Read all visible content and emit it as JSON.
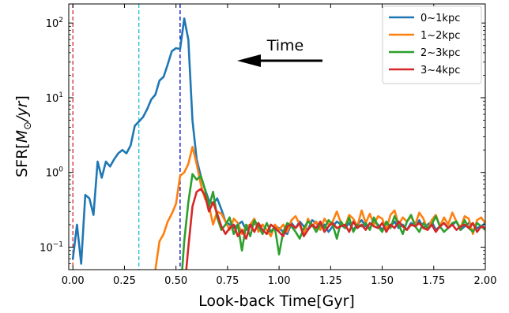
{
  "chart_data": {
    "type": "line",
    "xlabel": "Look-back Time[Gyr]",
    "ylabel_parts": [
      "SFR[",
      "M",
      "⊙",
      "/",
      "yr",
      "]"
    ],
    "xlim": [
      -0.02,
      2.0
    ],
    "ylim": [
      0.05,
      180
    ],
    "yscale": "log",
    "xticks": [
      0.0,
      0.25,
      0.5,
      0.75,
      1.0,
      1.25,
      1.5,
      1.75,
      2.0
    ],
    "xtick_labels": [
      "0.00",
      "0.25",
      "0.50",
      "0.75",
      "1.00",
      "1.25",
      "1.50",
      "1.75",
      "2.00"
    ],
    "yticks": [
      {
        "value": 0.1,
        "base": "10",
        "exp": "−1"
      },
      {
        "value": 1,
        "base": "10",
        "exp": "0"
      },
      {
        "value": 10,
        "base": "10",
        "exp": "1"
      },
      {
        "value": 100,
        "base": "10",
        "exp": "2"
      }
    ],
    "grid": false,
    "legend_position": "top-right",
    "vlines": [
      {
        "x": 0.0,
        "color": "#d62728",
        "style": "dashed"
      },
      {
        "x": 0.32,
        "color": "#17becf",
        "style": "dashed"
      },
      {
        "x": 0.52,
        "color": "#0000cc",
        "style": "dashed"
      }
    ],
    "annotation": {
      "text": "Time",
      "arrow": "left",
      "x_from": 1.21,
      "x_to": 0.82,
      "y": 60
    },
    "series": [
      {
        "name": "0~1kpc",
        "color": "#1f77b4",
        "x": [
          0.0,
          0.02,
          0.04,
          0.06,
          0.08,
          0.1,
          0.12,
          0.14,
          0.16,
          0.18,
          0.2,
          0.22,
          0.24,
          0.26,
          0.28,
          0.3,
          0.32,
          0.34,
          0.36,
          0.38,
          0.4,
          0.42,
          0.44,
          0.46,
          0.48,
          0.5,
          0.52,
          0.54,
          0.56,
          0.58,
          0.6,
          0.62,
          0.64,
          0.66,
          0.68,
          0.7,
          0.72,
          0.74,
          0.76,
          0.78,
          0.8,
          0.82,
          0.84,
          0.86,
          0.88,
          0.9,
          0.92,
          0.94,
          0.96,
          0.98,
          1.0,
          1.02,
          1.04,
          1.06,
          1.08,
          1.1,
          1.12,
          1.14,
          1.16,
          1.18,
          1.2,
          1.22,
          1.24,
          1.26,
          1.28,
          1.3,
          1.32,
          1.34,
          1.36,
          1.38,
          1.4,
          1.42,
          1.44,
          1.46,
          1.48,
          1.5,
          1.52,
          1.54,
          1.56,
          1.58,
          1.6,
          1.62,
          1.64,
          1.66,
          1.68,
          1.7,
          1.72,
          1.74,
          1.76,
          1.78,
          1.8,
          1.82,
          1.84,
          1.86,
          1.88,
          1.9,
          1.92,
          1.94,
          1.96,
          1.98,
          2.0
        ],
        "values": [
          0.07,
          0.2,
          0.06,
          0.5,
          0.45,
          0.27,
          1.4,
          0.85,
          1.4,
          1.2,
          1.5,
          1.8,
          2.0,
          1.8,
          2.3,
          4.2,
          4.8,
          5.5,
          7.0,
          9.5,
          11.0,
          17.0,
          19.0,
          28.0,
          42.0,
          46.0,
          45.0,
          115.0,
          60.0,
          5.0,
          1.5,
          0.9,
          0.6,
          0.42,
          0.38,
          0.45,
          0.32,
          0.22,
          0.2,
          0.18,
          0.2,
          0.22,
          0.17,
          0.19,
          0.21,
          0.18,
          0.2,
          0.17,
          0.16,
          0.19,
          0.18,
          0.16,
          0.15,
          0.21,
          0.18,
          0.22,
          0.19,
          0.17,
          0.23,
          0.21,
          0.18,
          0.2,
          0.16,
          0.19,
          0.22,
          0.2,
          0.18,
          0.21,
          0.17,
          0.2,
          0.23,
          0.19,
          0.18,
          0.22,
          0.2,
          0.17,
          0.21,
          0.19,
          0.22,
          0.18,
          0.2,
          0.17,
          0.21,
          0.19,
          0.23,
          0.18,
          0.2,
          0.22,
          0.17,
          0.19,
          0.21,
          0.18,
          0.2,
          0.22,
          0.17,
          0.19,
          0.21,
          0.2,
          0.18,
          0.19,
          0.21
        ]
      },
      {
        "name": "1~2kpc",
        "color": "#ff7f0e",
        "x": [
          0.4,
          0.42,
          0.44,
          0.46,
          0.48,
          0.5,
          0.52,
          0.54,
          0.56,
          0.58,
          0.6,
          0.62,
          0.64,
          0.66,
          0.68,
          0.7,
          0.72,
          0.74,
          0.76,
          0.78,
          0.8,
          0.82,
          0.84,
          0.86,
          0.88,
          0.9,
          0.92,
          0.94,
          0.96,
          0.98,
          1.0,
          1.02,
          1.04,
          1.06,
          1.08,
          1.1,
          1.12,
          1.14,
          1.16,
          1.18,
          1.2,
          1.22,
          1.24,
          1.26,
          1.28,
          1.3,
          1.32,
          1.34,
          1.36,
          1.38,
          1.4,
          1.42,
          1.44,
          1.46,
          1.48,
          1.5,
          1.52,
          1.54,
          1.56,
          1.58,
          1.6,
          1.62,
          1.64,
          1.66,
          1.68,
          1.7,
          1.72,
          1.74,
          1.76,
          1.78,
          1.8,
          1.82,
          1.84,
          1.86,
          1.88,
          1.9,
          1.92,
          1.94,
          1.96,
          1.98,
          2.0
        ],
        "values": [
          0.05,
          0.12,
          0.15,
          0.22,
          0.28,
          0.38,
          0.9,
          1.0,
          1.3,
          2.2,
          1.3,
          0.7,
          0.45,
          0.36,
          0.2,
          0.3,
          0.28,
          0.22,
          0.17,
          0.24,
          0.21,
          0.15,
          0.19,
          0.2,
          0.24,
          0.16,
          0.2,
          0.17,
          0.14,
          0.2,
          0.17,
          0.2,
          0.16,
          0.23,
          0.26,
          0.2,
          0.14,
          0.24,
          0.19,
          0.22,
          0.17,
          0.24,
          0.2,
          0.22,
          0.3,
          0.21,
          0.19,
          0.27,
          0.24,
          0.19,
          0.31,
          0.21,
          0.28,
          0.2,
          0.26,
          0.24,
          0.17,
          0.27,
          0.31,
          0.2,
          0.25,
          0.22,
          0.26,
          0.2,
          0.29,
          0.24,
          0.17,
          0.23,
          0.27,
          0.19,
          0.25,
          0.2,
          0.29,
          0.22,
          0.18,
          0.26,
          0.24,
          0.15,
          0.23,
          0.25,
          0.21
        ]
      },
      {
        "name": "2~3kpc",
        "color": "#2ca02c",
        "x": [
          0.53,
          0.54,
          0.56,
          0.58,
          0.6,
          0.62,
          0.64,
          0.66,
          0.68,
          0.7,
          0.72,
          0.74,
          0.76,
          0.78,
          0.8,
          0.82,
          0.84,
          0.86,
          0.88,
          0.9,
          0.92,
          0.94,
          0.96,
          0.98,
          1.0,
          1.02,
          1.04,
          1.06,
          1.08,
          1.1,
          1.12,
          1.14,
          1.16,
          1.18,
          1.2,
          1.22,
          1.24,
          1.26,
          1.28,
          1.3,
          1.32,
          1.34,
          1.36,
          1.38,
          1.4,
          1.42,
          1.44,
          1.46,
          1.48,
          1.5,
          1.52,
          1.54,
          1.56,
          1.58,
          1.6,
          1.62,
          1.64,
          1.66,
          1.68,
          1.7,
          1.72,
          1.74,
          1.76,
          1.78,
          1.8,
          1.82,
          1.84,
          1.86,
          1.88,
          1.9,
          1.92,
          1.94,
          1.96,
          1.98,
          2.0
        ],
        "values": [
          0.05,
          0.12,
          0.4,
          0.95,
          0.8,
          0.9,
          0.6,
          0.35,
          0.55,
          0.25,
          0.17,
          0.2,
          0.25,
          0.15,
          0.2,
          0.09,
          0.2,
          0.14,
          0.23,
          0.19,
          0.15,
          0.21,
          0.16,
          0.18,
          0.08,
          0.16,
          0.21,
          0.19,
          0.16,
          0.13,
          0.18,
          0.22,
          0.2,
          0.16,
          0.2,
          0.18,
          0.23,
          0.2,
          0.13,
          0.22,
          0.18,
          0.25,
          0.16,
          0.2,
          0.19,
          0.21,
          0.17,
          0.25,
          0.19,
          0.16,
          0.22,
          0.18,
          0.26,
          0.2,
          0.15,
          0.22,
          0.27,
          0.19,
          0.16,
          0.21,
          0.18,
          0.2,
          0.26,
          0.19,
          0.16,
          0.18,
          0.21,
          0.22,
          0.17,
          0.23,
          0.18,
          0.16,
          0.21,
          0.19,
          0.17
        ]
      },
      {
        "name": "3~4kpc",
        "color": "#d62728",
        "x": [
          0.55,
          0.56,
          0.58,
          0.6,
          0.62,
          0.64,
          0.66,
          0.68,
          0.7,
          0.72,
          0.74,
          0.76,
          0.78,
          0.8,
          0.82,
          0.84,
          0.86,
          0.88,
          0.9,
          0.92,
          0.94,
          0.96,
          0.98,
          1.0,
          1.02,
          1.04,
          1.06,
          1.08,
          1.1,
          1.12,
          1.14,
          1.16,
          1.18,
          1.2,
          1.22,
          1.24,
          1.26,
          1.28,
          1.3,
          1.32,
          1.34,
          1.36,
          1.38,
          1.4,
          1.42,
          1.44,
          1.46,
          1.48,
          1.5,
          1.52,
          1.54,
          1.56,
          1.58,
          1.6,
          1.62,
          1.64,
          1.66,
          1.68,
          1.7,
          1.72,
          1.74,
          1.76,
          1.78,
          1.8,
          1.82,
          1.84,
          1.86,
          1.88,
          1.9,
          1.92,
          1.94,
          1.96,
          1.98,
          2.0
        ],
        "values": [
          0.05,
          0.1,
          0.35,
          0.55,
          0.6,
          0.5,
          0.3,
          0.4,
          0.28,
          0.19,
          0.15,
          0.18,
          0.2,
          0.14,
          0.17,
          0.13,
          0.2,
          0.16,
          0.21,
          0.17,
          0.15,
          0.2,
          0.18,
          0.16,
          0.14,
          0.19,
          0.2,
          0.18,
          0.21,
          0.14,
          0.17,
          0.2,
          0.18,
          0.22,
          0.16,
          0.19,
          0.21,
          0.18,
          0.19,
          0.2,
          0.16,
          0.22,
          0.18,
          0.2,
          0.17,
          0.21,
          0.19,
          0.18,
          0.21,
          0.16,
          0.2,
          0.18,
          0.22,
          0.19,
          0.17,
          0.2,
          0.19,
          0.21,
          0.18,
          0.17,
          0.2,
          0.16,
          0.19,
          0.21,
          0.18,
          0.2,
          0.17,
          0.19,
          0.2,
          0.18,
          0.21,
          0.16,
          0.19,
          0.18
        ]
      }
    ]
  }
}
